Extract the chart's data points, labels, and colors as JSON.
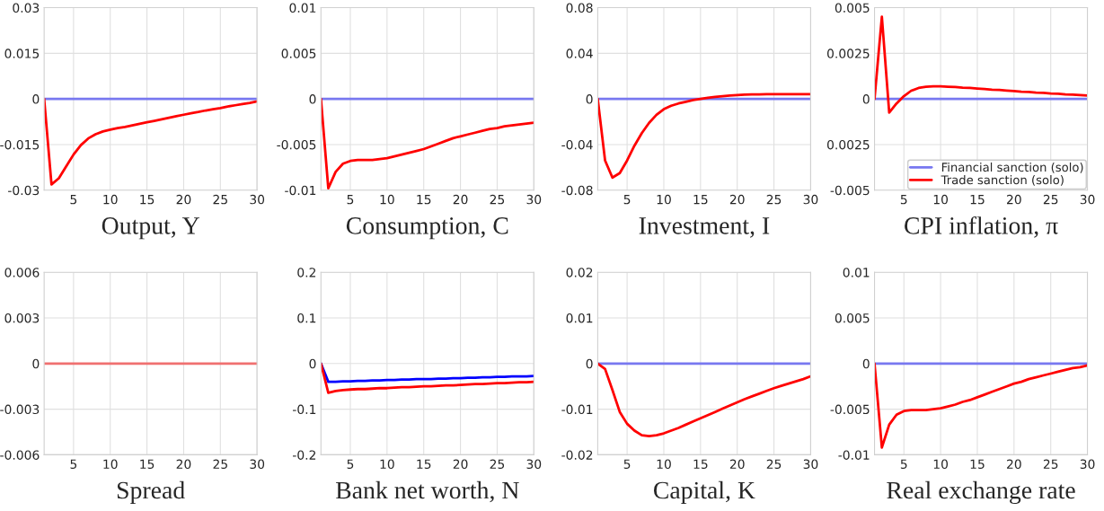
{
  "chart_data": [
    {
      "type": "line",
      "xlabel": "Output, Y",
      "x": [
        1,
        2,
        3,
        4,
        5,
        6,
        7,
        8,
        9,
        10,
        11,
        12,
        13,
        14,
        15,
        16,
        17,
        18,
        19,
        20,
        21,
        22,
        23,
        24,
        25,
        26,
        27,
        28,
        29,
        30
      ],
      "xlim": [
        1,
        30
      ],
      "xticks": [
        5,
        10,
        15,
        20,
        25,
        30
      ],
      "ylim": [
        -0.03,
        0.03
      ],
      "yticks": [
        -0.03,
        -0.015,
        0,
        0.015,
        0.03
      ],
      "grid": true,
      "series": [
        {
          "color": "#7878f0",
          "values": [
            0,
            0,
            0,
            0,
            0,
            0,
            0,
            0,
            0,
            0,
            0,
            0,
            0,
            0,
            0,
            0,
            0,
            0,
            0,
            0,
            0,
            0,
            0,
            0,
            0,
            0,
            0,
            0,
            0,
            0
          ]
        },
        {
          "color": "#ff0000",
          "values": [
            0,
            -0.0281,
            -0.0261,
            -0.0222,
            -0.0183,
            -0.0152,
            -0.013,
            -0.0116,
            -0.0107,
            -0.0101,
            -0.0096,
            -0.0092,
            -0.0087,
            -0.0082,
            -0.0077,
            -0.0072,
            -0.0067,
            -0.0062,
            -0.0057,
            -0.0052,
            -0.0047,
            -0.0043,
            -0.0038,
            -0.0034,
            -0.003,
            -0.0025,
            -0.0021,
            -0.0017,
            -0.0013,
            -0.0008
          ]
        }
      ]
    },
    {
      "type": "line",
      "xlabel": "Consumption, C",
      "x": [
        1,
        2,
        3,
        4,
        5,
        6,
        7,
        8,
        9,
        10,
        11,
        12,
        13,
        14,
        15,
        16,
        17,
        18,
        19,
        20,
        21,
        22,
        23,
        24,
        25,
        26,
        27,
        28,
        29,
        30
      ],
      "xlim": [
        1,
        30
      ],
      "xticks": [
        5,
        10,
        15,
        20,
        25,
        30
      ],
      "ylim": [
        -0.01,
        0.01
      ],
      "yticks": [
        -0.01,
        -0.005,
        0,
        0.005,
        0.01
      ],
      "grid": true,
      "series": [
        {
          "color": "#7878f0",
          "values": [
            0,
            0,
            0,
            0,
            0,
            0,
            0,
            0,
            0,
            0,
            0,
            0,
            0,
            0,
            0,
            0,
            0,
            0,
            0,
            0,
            0,
            0,
            0,
            0,
            0,
            0,
            0,
            0,
            0,
            0
          ]
        },
        {
          "color": "#ff0000",
          "values": [
            0,
            -0.0098,
            -0.008,
            -0.0071,
            -0.0068,
            -0.0067,
            -0.0067,
            -0.0067,
            -0.0066,
            -0.0065,
            -0.0063,
            -0.0061,
            -0.0059,
            -0.0057,
            -0.0055,
            -0.0052,
            -0.0049,
            -0.0046,
            -0.0043,
            -0.0041,
            -0.0039,
            -0.0037,
            -0.0035,
            -0.0033,
            -0.0032,
            -0.003,
            -0.0029,
            -0.0028,
            -0.0027,
            -0.0026
          ]
        }
      ]
    },
    {
      "type": "line",
      "xlabel": "Investment, I",
      "x": [
        1,
        2,
        3,
        4,
        5,
        6,
        7,
        8,
        9,
        10,
        11,
        12,
        13,
        14,
        15,
        16,
        17,
        18,
        19,
        20,
        21,
        22,
        23,
        24,
        25,
        26,
        27,
        28,
        29,
        30
      ],
      "xlim": [
        1,
        30
      ],
      "xticks": [
        5,
        10,
        15,
        20,
        25,
        30
      ],
      "ylim": [
        -0.08,
        0.08
      ],
      "yticks": [
        -0.08,
        -0.04,
        0,
        0.04,
        0.08
      ],
      "grid": true,
      "series": [
        {
          "color": "#7878f0",
          "values": [
            0,
            0,
            0,
            0,
            0,
            0,
            0,
            0,
            0,
            0,
            0,
            0,
            0,
            0,
            0,
            0,
            0,
            0,
            0,
            0,
            0,
            0,
            0,
            0,
            0,
            0,
            0,
            0,
            0,
            0
          ]
        },
        {
          "color": "#ff0000",
          "values": [
            0,
            -0.054,
            -0.069,
            -0.065,
            -0.054,
            -0.041,
            -0.03,
            -0.021,
            -0.014,
            -0.009,
            -0.006,
            -0.004,
            -0.0025,
            -0.001,
            0,
            0.001,
            0.0018,
            0.0024,
            0.003,
            0.0034,
            0.0037,
            0.0039,
            0.004,
            0.0041,
            0.0041,
            0.0042,
            0.0042,
            0.0042,
            0.0042,
            0.0042
          ]
        }
      ]
    },
    {
      "type": "line",
      "xlabel": "CPI inflation, π",
      "x": [
        1,
        2,
        3,
        4,
        5,
        6,
        7,
        8,
        9,
        10,
        11,
        12,
        13,
        14,
        15,
        16,
        17,
        18,
        19,
        20,
        21,
        22,
        23,
        24,
        25,
        26,
        27,
        28,
        29,
        30
      ],
      "xlim": [
        1,
        30
      ],
      "xticks": [
        5,
        10,
        15,
        20,
        25,
        30
      ],
      "ylim": [
        -0.005,
        0.005
      ],
      "yticks": [
        -0.005,
        {
          "value": -0.0025,
          "label": "0.0025"
        },
        0,
        0.0025,
        0.005
      ],
      "grid": true,
      "legend": "bottom right",
      "series": [
        {
          "name": "Financial sanction (solo)",
          "color": "#7878f0",
          "values": [
            0,
            0,
            0,
            0,
            0,
            0,
            0,
            0,
            0,
            0,
            0,
            0,
            0,
            0,
            0,
            0,
            0,
            0,
            0,
            0,
            0,
            0,
            0,
            0,
            0,
            0,
            0,
            0,
            0,
            0
          ]
        },
        {
          "name": "Trade sanction (solo)",
          "color": "#ff0000",
          "values": [
            0,
            0.0045,
            -0.00075,
            -0.00025,
            0.00015,
            0.00045,
            0.0006,
            0.00066,
            0.00069,
            0.00069,
            0.00067,
            0.00065,
            0.00062,
            0.0006,
            0.00057,
            0.00054,
            0.00051,
            0.00049,
            0.00046,
            0.00043,
            0.0004,
            0.00038,
            0.00035,
            0.00033,
            0.0003,
            0.00028,
            0.00025,
            0.00023,
            0.00021,
            0.00018
          ]
        }
      ]
    },
    {
      "type": "line",
      "xlabel": "Spread",
      "x": [
        1,
        2,
        3,
        4,
        5,
        6,
        7,
        8,
        9,
        10,
        11,
        12,
        13,
        14,
        15,
        16,
        17,
        18,
        19,
        20,
        21,
        22,
        23,
        24,
        25,
        26,
        27,
        28,
        29,
        30
      ],
      "xlim": [
        1,
        30
      ],
      "xticks": [
        5,
        10,
        15,
        20,
        25,
        30
      ],
      "ylim": [
        -0.006,
        0.006
      ],
      "yticks": [
        -0.006,
        -0.003,
        0,
        0.003,
        0.006
      ],
      "grid": true,
      "series": [
        {
          "color": "#7878f0",
          "values": [
            null,
            null,
            null,
            null,
            null,
            null,
            null,
            null,
            null,
            null,
            null,
            null,
            null,
            null,
            null,
            null,
            null,
            null,
            null,
            null,
            null,
            null,
            null,
            null,
            null,
            null,
            null,
            null,
            null,
            null
          ]
        },
        {
          "color": "#f07070",
          "values": [
            0,
            0,
            0,
            0,
            0,
            0,
            0,
            0,
            0,
            0,
            0,
            0,
            0,
            0,
            0,
            0,
            0,
            0,
            0,
            0,
            0,
            0,
            0,
            0,
            0,
            0,
            0,
            0,
            0,
            0
          ]
        }
      ]
    },
    {
      "type": "line",
      "xlabel": "Bank net worth, N",
      "x": [
        1,
        2,
        3,
        4,
        5,
        6,
        7,
        8,
        9,
        10,
        11,
        12,
        13,
        14,
        15,
        16,
        17,
        18,
        19,
        20,
        21,
        22,
        23,
        24,
        25,
        26,
        27,
        28,
        29,
        30
      ],
      "xlim": [
        1,
        30
      ],
      "xticks": [
        5,
        10,
        15,
        20,
        25,
        30
      ],
      "ylim": [
        -0.2,
        0.2
      ],
      "yticks": [
        -0.2,
        -0.1,
        0,
        0.1,
        0.2
      ],
      "grid": true,
      "series": [
        {
          "color": "#0000ff",
          "values": [
            0,
            -0.04,
            -0.04,
            -0.039,
            -0.039,
            -0.038,
            -0.038,
            -0.037,
            -0.037,
            -0.036,
            -0.036,
            -0.035,
            -0.035,
            -0.034,
            -0.034,
            -0.034,
            -0.033,
            -0.033,
            -0.032,
            -0.032,
            -0.031,
            -0.031,
            -0.03,
            -0.03,
            -0.029,
            -0.029,
            -0.028,
            -0.028,
            -0.028,
            -0.027
          ]
        },
        {
          "color": "#ff0000",
          "values": [
            0,
            -0.064,
            -0.06,
            -0.058,
            -0.057,
            -0.056,
            -0.056,
            -0.055,
            -0.054,
            -0.054,
            -0.053,
            -0.052,
            -0.052,
            -0.051,
            -0.05,
            -0.05,
            -0.049,
            -0.048,
            -0.048,
            -0.047,
            -0.046,
            -0.045,
            -0.045,
            -0.044,
            -0.043,
            -0.043,
            -0.042,
            -0.041,
            -0.041,
            -0.04
          ]
        }
      ]
    },
    {
      "type": "line",
      "xlabel": "Capital, K",
      "x": [
        1,
        2,
        3,
        4,
        5,
        6,
        7,
        8,
        9,
        10,
        11,
        12,
        13,
        14,
        15,
        16,
        17,
        18,
        19,
        20,
        21,
        22,
        23,
        24,
        25,
        26,
        27,
        28,
        29,
        30
      ],
      "xlim": [
        1,
        30
      ],
      "xticks": [
        5,
        10,
        15,
        20,
        25,
        30
      ],
      "ylim": [
        -0.02,
        0.02
      ],
      "yticks": [
        -0.02,
        -0.01,
        0,
        0.01,
        0.02
      ],
      "grid": true,
      "series": [
        {
          "color": "#7878f0",
          "values": [
            0,
            0,
            0,
            0,
            0,
            0,
            0,
            0,
            0,
            0,
            0,
            0,
            0,
            0,
            0,
            0,
            0,
            0,
            0,
            0,
            0,
            0,
            0,
            0,
            0,
            0,
            0,
            0,
            0,
            0
          ]
        },
        {
          "color": "#ff0000",
          "values": [
            0,
            -0.0012,
            -0.0058,
            -0.0106,
            -0.0132,
            -0.0147,
            -0.0157,
            -0.0159,
            -0.0157,
            -0.0153,
            -0.0147,
            -0.0141,
            -0.0134,
            -0.0127,
            -0.012,
            -0.0113,
            -0.0106,
            -0.0099,
            -0.0092,
            -0.0085,
            -0.0078,
            -0.0072,
            -0.0066,
            -0.006,
            -0.0054,
            -0.0049,
            -0.0044,
            -0.0039,
            -0.0034,
            -0.0028
          ]
        }
      ]
    },
    {
      "type": "line",
      "xlabel": "Real exchange rate",
      "x": [
        1,
        2,
        3,
        4,
        5,
        6,
        7,
        8,
        9,
        10,
        11,
        12,
        13,
        14,
        15,
        16,
        17,
        18,
        19,
        20,
        21,
        22,
        23,
        24,
        25,
        26,
        27,
        28,
        29,
        30
      ],
      "xlim": [
        1,
        30
      ],
      "xticks": [
        5,
        10,
        15,
        20,
        25,
        30
      ],
      "ylim": [
        -0.01,
        0.01
      ],
      "yticks": [
        -0.01,
        -0.005,
        0,
        0.005,
        0.01
      ],
      "grid": true,
      "series": [
        {
          "color": "#7878f0",
          "values": [
            0,
            0,
            0,
            0,
            0,
            0,
            0,
            0,
            0,
            0,
            0,
            0,
            0,
            0,
            0,
            0,
            0,
            0,
            0,
            0,
            0,
            0,
            0,
            0,
            0,
            0,
            0,
            0,
            0,
            0
          ]
        },
        {
          "color": "#ff0000",
          "values": [
            0,
            -0.0092,
            -0.0067,
            -0.0056,
            -0.0052,
            -0.0051,
            -0.0051,
            -0.0051,
            -0.005,
            -0.0049,
            -0.0047,
            -0.0045,
            -0.0042,
            -0.004,
            -0.0037,
            -0.0034,
            -0.0031,
            -0.0028,
            -0.0025,
            -0.0022,
            -0.002,
            -0.0017,
            -0.0015,
            -0.0013,
            -0.0011,
            -0.0009,
            -0.0007,
            -0.0005,
            -0.0004,
            -0.0002
          ]
        }
      ]
    }
  ]
}
